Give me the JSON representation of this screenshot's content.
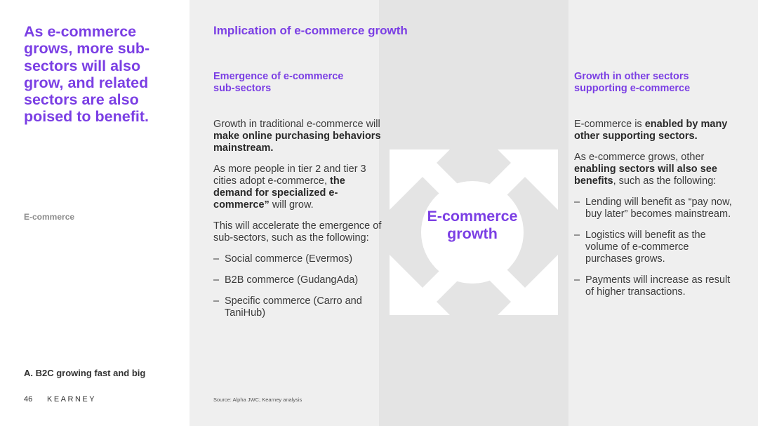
{
  "sidebar": {
    "headline": "As e-commerce grows, more sub-sectors will also grow, and related sectors are also poised to benefit.",
    "section_label": "E-commerce",
    "chapter_label": "A. B2C growing fast and big",
    "page_number": "46",
    "brand": "KEARNEY"
  },
  "main": {
    "title": "Implication of e-commerce growth",
    "center_label_line1": "E-commerce",
    "center_label_line2": "growth",
    "source": "Source: Alpha JWC; Kearney analysis",
    "left_column": {
      "heading_line1": "Emergence of e-commerce",
      "heading_line2": "sub-sectors",
      "p1": {
        "a": "Growth in traditional e-commerce will ",
        "b": "make online purchasing behaviors mainstream."
      },
      "p2": {
        "a": "As more people in tier 2 and tier 3 cities adopt e-commerce, ",
        "b": "the demand for specialized e-commerce”",
        "c": " will grow."
      },
      "p3": "This will accelerate the emergence of sub-sectors, such as the following:",
      "bullets": [
        "Social commerce (Evermos)",
        "B2B commerce (GudangAda)",
        "Specific commerce (Carro and TaniHub)"
      ]
    },
    "right_column": {
      "heading_line1": "Growth in other sectors",
      "heading_line2": "supporting e-commerce",
      "p1": {
        "a": "E-commerce is ",
        "b": "enabled by many other supporting sectors."
      },
      "p2": {
        "a": "As e-commerce grows, other ",
        "b": "enabling sectors will also see benefits",
        "c": ", such as the following:"
      },
      "bullets": [
        "Lending will benefit as “pay now, buy later” becomes mainstream.",
        "Logistics will benefit as the volume of e-commerce purchases grows.",
        "Payments will increase as result of higher transactions."
      ]
    }
  }
}
